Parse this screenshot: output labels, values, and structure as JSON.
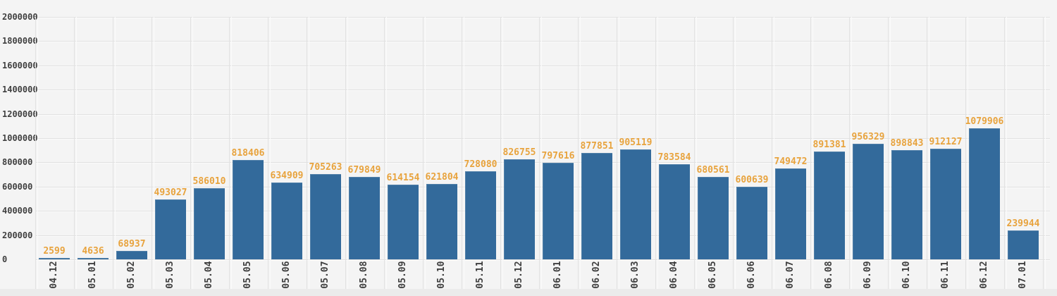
{
  "chart_data": {
    "type": "bar",
    "categories": [
      "04.12",
      "05.01",
      "05.02",
      "05.03",
      "05.04",
      "05.05",
      "05.06",
      "05.07",
      "05.08",
      "05.09",
      "05.10",
      "05.11",
      "05.12",
      "06.01",
      "06.02",
      "06.03",
      "06.04",
      "06.05",
      "06.06",
      "06.07",
      "06.08",
      "06.09",
      "06.10",
      "06.11",
      "06.12",
      "07.01"
    ],
    "values": [
      2599,
      4636,
      68937,
      493027,
      586010,
      818406,
      634909,
      705263,
      679849,
      614154,
      621804,
      728080,
      826755,
      797616,
      877851,
      905119,
      783584,
      680561,
      600639,
      749472,
      891381,
      956329,
      898843,
      912127,
      1079906,
      239944
    ],
    "ylim": [
      0,
      2000000
    ],
    "ytick_step": 200000,
    "grid": true,
    "legend": null,
    "value_labels_shown": true,
    "colors": {
      "bar": "#336a9b",
      "bar_highlight": "rgba(255,255,255,0.15)",
      "value_label": "#e8a33d",
      "axis_label": "#3f3f3f",
      "background": "#f4f4f4",
      "grid_line": "#e1e1e1",
      "grid_highlight": "#fbfbfb",
      "footer_strip": "#ebebeb"
    }
  }
}
